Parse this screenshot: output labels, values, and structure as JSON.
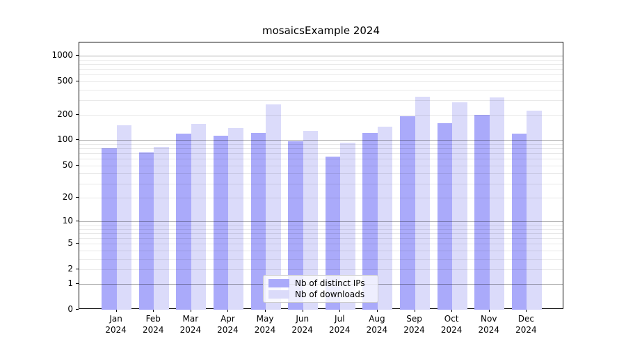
{
  "title": "mosaicsExample 2024",
  "chart_data": {
    "type": "bar",
    "title": "mosaicsExample 2024",
    "categories": [
      "Jan 2024",
      "Feb 2024",
      "Mar 2024",
      "Apr 2024",
      "May 2024",
      "Jun 2024",
      "Jul 2024",
      "Aug 2024",
      "Sep 2024",
      "Oct 2024",
      "Nov 2024",
      "Dec 2024"
    ],
    "series": [
      {
        "name": "Nb of distinct IPs",
        "color": "#aaaafa",
        "values": [
          80,
          72,
          119,
          113,
          122,
          97,
          64,
          122,
          194,
          159,
          202,
          119
        ]
      },
      {
        "name": "Nb of downloads",
        "color": "#dbdbfa",
        "values": [
          150,
          83,
          157,
          140,
          269,
          130,
          94,
          145,
          332,
          284,
          322,
          227
        ]
      }
    ],
    "xlabel": "",
    "ylabel": "",
    "yscale": "log1p",
    "ylim": [
      0,
      1450
    ],
    "yticks": [
      0,
      1,
      2,
      5,
      10,
      20,
      50,
      100,
      200,
      500,
      1000
    ],
    "minor_gridlines": [
      3,
      4,
      6,
      7,
      8,
      9,
      30,
      40,
      60,
      70,
      80,
      90,
      300,
      400,
      600,
      700,
      800,
      900
    ],
    "major_gridlines": [
      1,
      10,
      100,
      1000
    ],
    "grid": true,
    "legend_position": "lower center"
  },
  "legend": {
    "items": [
      {
        "label": "Nb of distinct IPs"
      },
      {
        "label": "Nb of downloads"
      }
    ]
  }
}
